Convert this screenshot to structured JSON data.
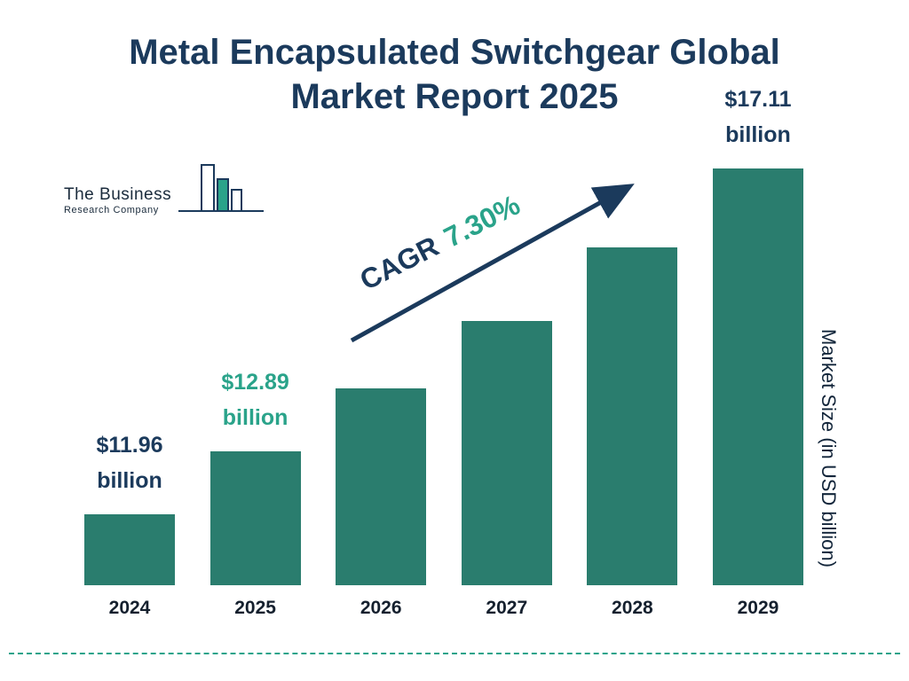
{
  "title": {
    "line1": "Metal Encapsulated Switchgear Global",
    "line2": "Market Report 2025"
  },
  "logo": {
    "line1": "The Business",
    "line2": "Research Company"
  },
  "chart_data": {
    "type": "bar",
    "categories": [
      "2024",
      "2025",
      "2026",
      "2027",
      "2028",
      "2029"
    ],
    "values": [
      11.96,
      12.89,
      13.83,
      14.84,
      15.93,
      17.11
    ],
    "ylim": [
      10.9,
      17.5
    ],
    "ylabel": "Market Size (in USD billion)",
    "title": "Metal Encapsulated Switchgear Global Market Report 2025",
    "grid": false,
    "legend_position": "none",
    "bar_color": "#2a7d6e",
    "annotations": [
      {
        "bar_index": 0,
        "line1": "$11.96",
        "line2": "billion",
        "color": "#1b3a5c"
      },
      {
        "bar_index": 1,
        "line1": "$12.89",
        "line2": "billion",
        "color": "#2aa38a"
      },
      {
        "bar_index": 5,
        "line1": "$17.11",
        "line2": "billion",
        "color": "#1b3a5c"
      }
    ],
    "cagr": {
      "label": "CAGR",
      "value": "7.30%"
    }
  },
  "colors": {
    "navy": "#1b3a5c",
    "teal": "#2aa38a",
    "bar": "#2a7d6e"
  }
}
